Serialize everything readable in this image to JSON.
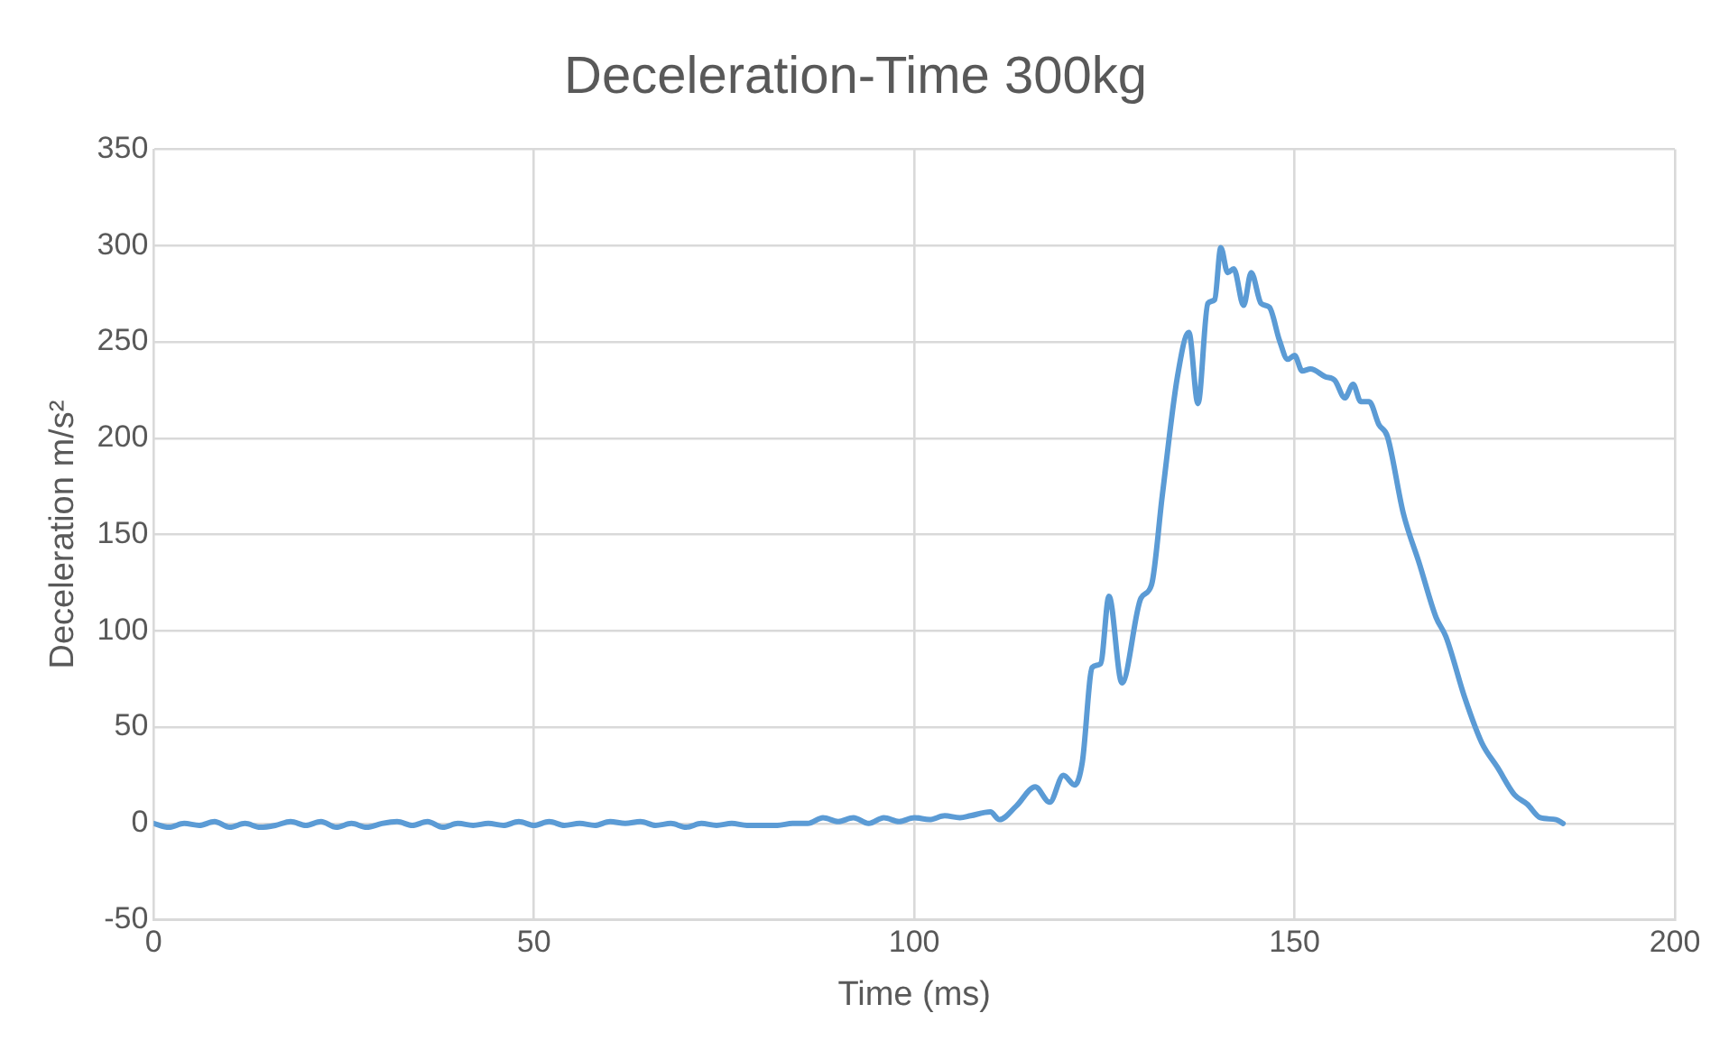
{
  "chart_data": {
    "type": "line",
    "title": "Deceleration-Time 300kg",
    "xlabel": "Time (ms)",
    "ylabel": "Deceleration m/s²",
    "xlim": [
      0,
      200
    ],
    "xticks": [
      0,
      50,
      100,
      150,
      200
    ],
    "ylim": [
      -50,
      350
    ],
    "yticks": [
      -50,
      0,
      50,
      100,
      150,
      200,
      250,
      300,
      350
    ],
    "grid": true,
    "legend": false,
    "marker": "none",
    "line_style": "solid",
    "series": [
      {
        "color": "#5b9bd5",
        "x": [
          0,
          2,
          4,
          6,
          8,
          10,
          12,
          14,
          16,
          18,
          20,
          22,
          24,
          26,
          28,
          30,
          32,
          34,
          36,
          38,
          40,
          42,
          44,
          46,
          48,
          50,
          52,
          54,
          56,
          58,
          60,
          62,
          64,
          66,
          68,
          70,
          72,
          74,
          76,
          78,
          80,
          82,
          84,
          86,
          88,
          90,
          92,
          94,
          96,
          98,
          100,
          102,
          104,
          106,
          107.4,
          110,
          111.2,
          113.4,
          115.9,
          117.8,
          119.6,
          121.1,
          122.1,
          123.4,
          124.5,
          125.6,
          127.3,
          129.8,
          131.2,
          132.6,
          134.6,
          136.1,
          137.3,
          138.6,
          139.5,
          140.3,
          141.2,
          142,
          143.3,
          144.3,
          145.6,
          146.7,
          148,
          149.1,
          150,
          151,
          152.1,
          154,
          155.3,
          156.6,
          157.7,
          158.7,
          159.8,
          161.1,
          162.2,
          164.3,
          166.4,
          168.6,
          169.9,
          172.4,
          174.6,
          176.7,
          178.9,
          180.6,
          182.3,
          184.4,
          185.3
        ],
        "values": [
          0,
          -2,
          0,
          -1,
          1,
          -2,
          0,
          -2,
          -1,
          1,
          -1,
          1,
          -2,
          0,
          -2,
          0,
          1,
          -1,
          1,
          -2,
          0,
          -1,
          0,
          -1,
          1,
          -1,
          1,
          -1,
          0,
          -1,
          1,
          0,
          1,
          -1,
          0,
          -2,
          0,
          -1,
          0,
          -1,
          -1,
          -1,
          0,
          0,
          3,
          1,
          3,
          0,
          3,
          1,
          3,
          2,
          4,
          3,
          4,
          6,
          2,
          9,
          19,
          11,
          25,
          20,
          32,
          81,
          83,
          118,
          73,
          117,
          124,
          170,
          232,
          255,
          218,
          270,
          272,
          299,
          286,
          288,
          269,
          286,
          270,
          268,
          251,
          241,
          243,
          235,
          236,
          232,
          230,
          221,
          228,
          219,
          219,
          207,
          201,
          161,
          135,
          107,
          97,
          65,
          42,
          29,
          15,
          10,
          3,
          2,
          0
        ]
      }
    ]
  }
}
